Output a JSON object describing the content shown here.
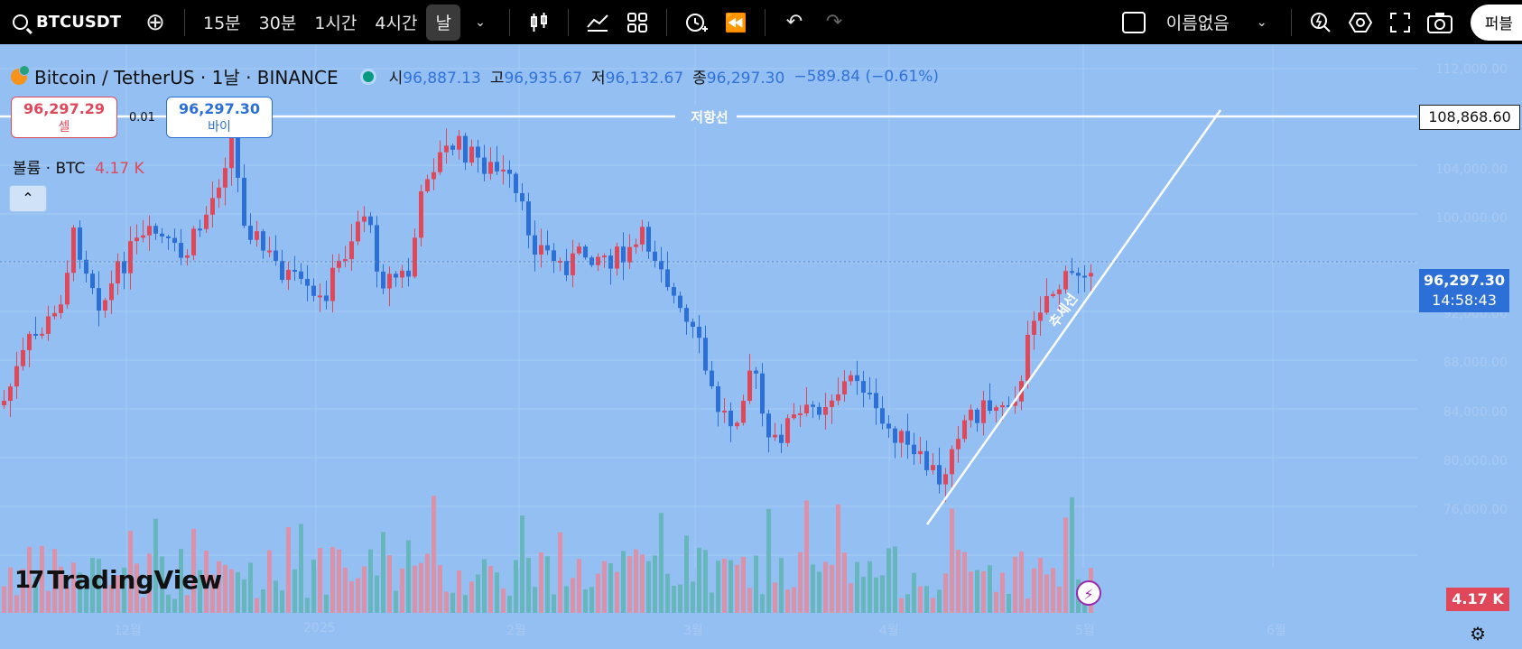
{
  "toolbar": {
    "symbol": "BTCUSDT",
    "intervals": [
      "15분",
      "30분",
      "1시간",
      "4시간",
      "날"
    ],
    "layout_name": "이름없음",
    "publish": "퍼블"
  },
  "legend": {
    "title": "Bitcoin / TetherUS · 1날 · BINANCE",
    "open_label": "시",
    "open": "96,887.13",
    "high_label": "고",
    "high": "96,935.67",
    "low_label": "저",
    "low": "96,132.67",
    "close_label": "종",
    "close": "96,297.30",
    "change": "−589.84 (−0.61%)"
  },
  "trade": {
    "sell_price": "96,297.29",
    "sell_label": "셀",
    "spread": "0.01",
    "buy_price": "96,297.30",
    "buy_label": "바이"
  },
  "volume": {
    "label": "볼륨 · BTC",
    "value": "4.17 K"
  },
  "drawings": {
    "resistance_label": "저항선",
    "resistance_price": "108,868.60",
    "trend_label": "추세선"
  },
  "scale": {
    "current_price": "96,297.30",
    "countdown": "14:58:43",
    "volume_tag": "4.17 K"
  },
  "logo": "TradingView",
  "colors": {
    "up": "#e0485a",
    "down": "#2c6fd6",
    "background": "#94bff3"
  }
}
